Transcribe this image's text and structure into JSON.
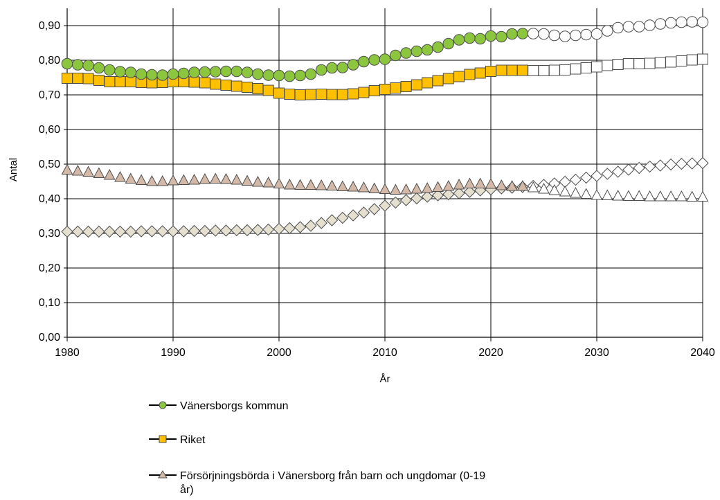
{
  "chart_data": {
    "type": "line",
    "title": "",
    "xlabel": "År",
    "ylabel": "Antal",
    "xlim": [
      1980,
      2040
    ],
    "ylim": [
      0,
      0.95
    ],
    "xticks": [
      1980,
      1990,
      2000,
      2010,
      2020,
      2030,
      2040
    ],
    "yticks": [
      0.0,
      0.1,
      0.2,
      0.3,
      0.4,
      0.5,
      0.6,
      0.7,
      0.8,
      0.9
    ],
    "ytick_labels": [
      "0,00",
      "0,10",
      "0,20",
      "0,30",
      "0,40",
      "0,50",
      "0,60",
      "0,70",
      "0,80",
      "0,90"
    ],
    "grid": true,
    "legend_position": "bottom",
    "forecast_from_year": 2024,
    "x": [
      1980,
      1981,
      1982,
      1983,
      1984,
      1985,
      1986,
      1987,
      1988,
      1989,
      1990,
      1991,
      1992,
      1993,
      1994,
      1995,
      1996,
      1997,
      1998,
      1999,
      2000,
      2001,
      2002,
      2003,
      2004,
      2005,
      2006,
      2007,
      2008,
      2009,
      2010,
      2011,
      2012,
      2013,
      2014,
      2015,
      2016,
      2017,
      2018,
      2019,
      2020,
      2021,
      2022,
      2023,
      2024,
      2025,
      2026,
      2027,
      2028,
      2029,
      2030,
      2031,
      2032,
      2033,
      2034,
      2035,
      2036,
      2037,
      2038,
      2039,
      2040
    ],
    "series": [
      {
        "name": "Vänersborgs kommun",
        "marker": "circle",
        "color": "#8cc63f",
        "forecast_color": "#ffffff",
        "values": [
          0.79,
          0.787,
          0.785,
          0.778,
          0.772,
          0.767,
          0.765,
          0.76,
          0.758,
          0.757,
          0.76,
          0.762,
          0.765,
          0.766,
          0.767,
          0.768,
          0.768,
          0.765,
          0.76,
          0.757,
          0.756,
          0.754,
          0.756,
          0.76,
          0.772,
          0.778,
          0.779,
          0.787,
          0.796,
          0.801,
          0.803,
          0.814,
          0.821,
          0.826,
          0.83,
          0.838,
          0.848,
          0.859,
          0.864,
          0.862,
          0.87,
          0.868,
          0.876,
          0.877,
          0.877,
          0.876,
          0.872,
          0.869,
          0.872,
          0.874,
          0.876,
          0.885,
          0.894,
          0.897,
          0.897,
          0.901,
          0.905,
          0.908,
          0.91,
          0.911,
          0.91
        ]
      },
      {
        "name": "Riket",
        "marker": "square",
        "color": "#ffc000",
        "forecast_color": "#ffffff",
        "values": [
          0.748,
          0.748,
          0.747,
          0.742,
          0.738,
          0.738,
          0.738,
          0.736,
          0.735,
          0.736,
          0.738,
          0.738,
          0.737,
          0.735,
          0.731,
          0.728,
          0.725,
          0.722,
          0.718,
          0.713,
          0.705,
          0.702,
          0.7,
          0.701,
          0.702,
          0.701,
          0.701,
          0.703,
          0.707,
          0.712,
          0.716,
          0.72,
          0.724,
          0.729,
          0.735,
          0.741,
          0.747,
          0.753,
          0.759,
          0.763,
          0.768,
          0.771,
          0.771,
          0.771,
          0.77,
          0.77,
          0.771,
          0.772,
          0.775,
          0.778,
          0.781,
          0.785,
          0.788,
          0.79,
          0.79,
          0.791,
          0.793,
          0.795,
          0.798,
          0.801,
          0.803
        ]
      },
      {
        "name": "Försörjningsbörda i Vänersborg från barn och ungdomar (0-19 år)",
        "marker": "triangle",
        "color": "#d5b9a8",
        "forecast_color": "#ffffff",
        "values": [
          0.483,
          0.48,
          0.477,
          0.473,
          0.468,
          0.462,
          0.457,
          0.453,
          0.45,
          0.45,
          0.452,
          0.453,
          0.454,
          0.456,
          0.457,
          0.456,
          0.454,
          0.451,
          0.448,
          0.446,
          0.443,
          0.44,
          0.439,
          0.439,
          0.438,
          0.437,
          0.435,
          0.434,
          0.432,
          0.429,
          0.427,
          0.425,
          0.426,
          0.428,
          0.43,
          0.433,
          0.436,
          0.44,
          0.443,
          0.443,
          0.442,
          0.438,
          0.436,
          0.436,
          0.432,
          0.428,
          0.424,
          0.42,
          0.416,
          0.413,
          0.41,
          0.409,
          0.408,
          0.407,
          0.407,
          0.406,
          0.406,
          0.406,
          0.406,
          0.405,
          0.405
        ]
      },
      {
        "name": "",
        "marker": "diamond",
        "color": "#e4dfcf",
        "forecast_color": "#ffffff",
        "values": [
          0.305,
          0.305,
          0.305,
          0.305,
          0.305,
          0.305,
          0.305,
          0.306,
          0.306,
          0.306,
          0.306,
          0.306,
          0.307,
          0.307,
          0.308,
          0.308,
          0.309,
          0.309,
          0.31,
          0.311,
          0.313,
          0.315,
          0.318,
          0.322,
          0.33,
          0.338,
          0.345,
          0.352,
          0.36,
          0.37,
          0.38,
          0.389,
          0.396,
          0.401,
          0.406,
          0.41,
          0.413,
          0.416,
          0.42,
          0.424,
          0.427,
          0.43,
          0.432,
          0.434,
          0.437,
          0.44,
          0.444,
          0.449,
          0.455,
          0.461,
          0.466,
          0.472,
          0.478,
          0.484,
          0.489,
          0.493,
          0.496,
          0.499,
          0.501,
          0.502,
          0.503
        ]
      }
    ]
  },
  "legend": [
    {
      "label": "Vänersborgs kommun",
      "marker": "circle"
    },
    {
      "label": "Riket",
      "marker": "square"
    },
    {
      "label_line1": "Försörjningsbörda i Vänersborg från barn och ungdomar (0-19",
      "label_line2": "år)",
      "marker": "triangle"
    }
  ]
}
